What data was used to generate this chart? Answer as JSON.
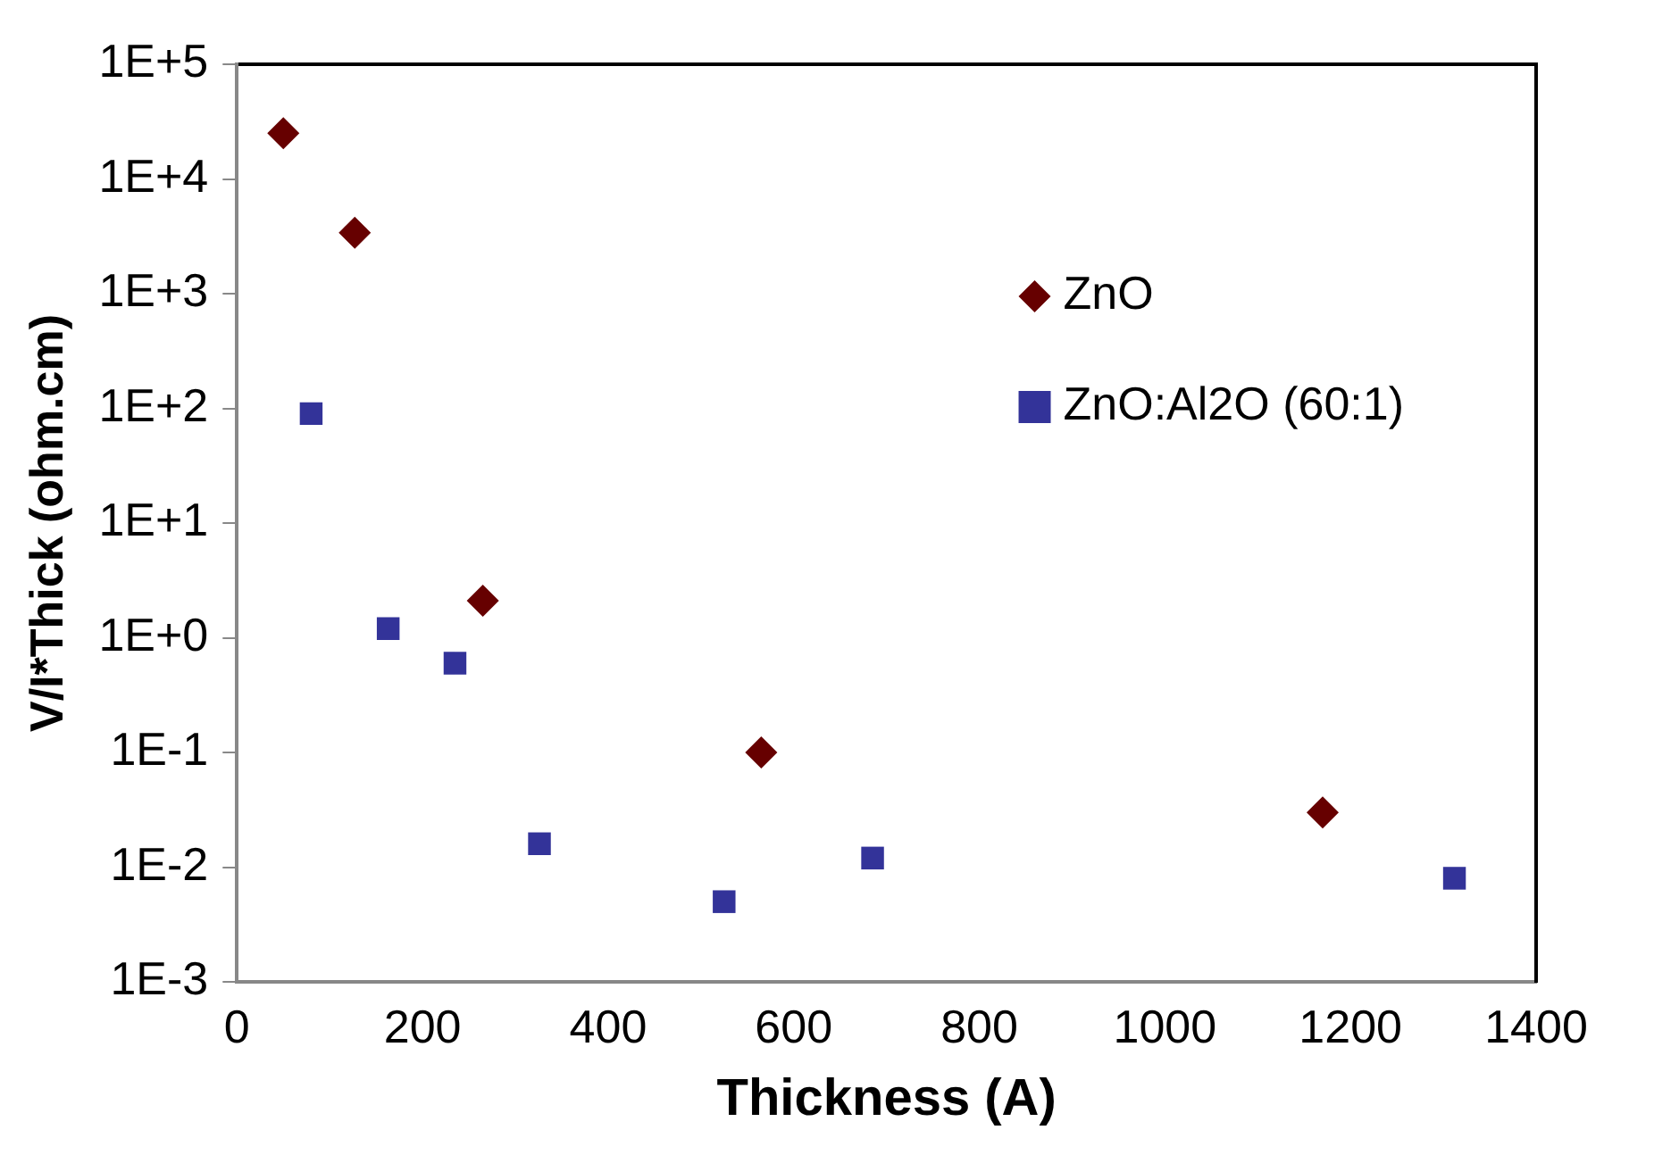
{
  "chart_data": {
    "type": "scatter",
    "xlabel": "Thickness (A)",
    "ylabel": "V/I*Thick (ohm.cm)",
    "log": "y",
    "grid": false,
    "legend": "top right",
    "xlim": [
      0,
      1400
    ],
    "xticks": [
      0,
      200,
      400,
      600,
      800,
      1000,
      1200,
      1400
    ],
    "ylim": [
      0.001,
      100000
    ],
    "yticks": [
      {
        "value": 0.001,
        "label": "1E-3"
      },
      {
        "value": 0.01,
        "label": "1E-2"
      },
      {
        "value": 0.1,
        "label": "1E-1"
      },
      {
        "value": 1,
        "label": "1E+0"
      },
      {
        "value": 10,
        "label": "1E+1"
      },
      {
        "value": 100,
        "label": "1E+2"
      },
      {
        "value": 1000,
        "label": "1E+3"
      },
      {
        "value": 10000,
        "label": "1E+4"
      },
      {
        "value": 100000,
        "label": "1E+5"
      }
    ],
    "series": [
      {
        "name": "ZnO",
        "color": "#660000",
        "marker": "diamond",
        "x": [
          50,
          127,
          265,
          565,
          1170
        ],
        "values": [
          25000,
          3400,
          2.1,
          0.1,
          0.03
        ]
      },
      {
        "name": "ZnO:Al2O (60:1)",
        "color": "#333399",
        "marker": "square",
        "x": [
          80,
          163,
          235,
          326,
          525,
          685,
          1312
        ],
        "values": [
          90,
          1.2,
          0.6,
          0.016,
          0.005,
          0.012,
          0.008
        ]
      }
    ]
  }
}
